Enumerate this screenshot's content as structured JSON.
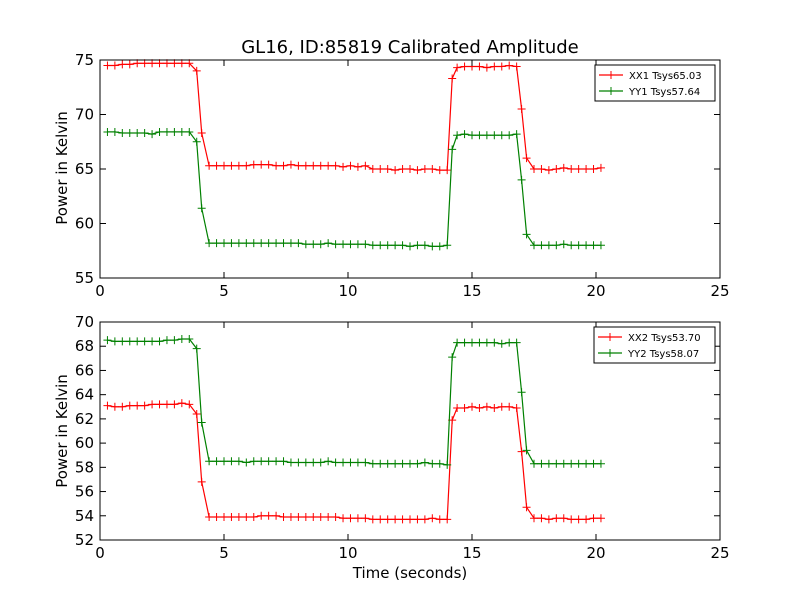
{
  "title": "GL16, ID:85819 Calibrated Amplitude",
  "xlabel": "Time (seconds)",
  "chart_data": [
    {
      "type": "line",
      "ylabel": "Power in Kelvin",
      "xlim": [
        0,
        25
      ],
      "ylim": [
        55,
        75
      ],
      "xticks": [
        "0",
        "5",
        "10",
        "15",
        "20",
        "25"
      ],
      "yticks": [
        "55",
        "60",
        "65",
        "70",
        "75"
      ],
      "legend": "top-right",
      "series": [
        {
          "name": "XX1 Tsys65.03",
          "color": "#ff0000",
          "x": [
            0.3,
            0.6,
            0.9,
            1.2,
            1.5,
            1.8,
            2.1,
            2.4,
            2.7,
            3.0,
            3.3,
            3.6,
            3.9,
            4.1,
            4.4,
            4.7,
            5.0,
            5.3,
            5.6,
            5.9,
            6.2,
            6.5,
            6.8,
            7.1,
            7.4,
            7.7,
            8.0,
            8.3,
            8.6,
            8.9,
            9.2,
            9.5,
            9.8,
            10.1,
            10.4,
            10.7,
            11.0,
            11.3,
            11.6,
            11.9,
            12.2,
            12.5,
            12.8,
            13.1,
            13.4,
            13.7,
            14.0,
            14.2,
            14.4,
            14.7,
            15.0,
            15.3,
            15.6,
            15.9,
            16.2,
            16.5,
            16.8,
            17.0,
            17.2,
            17.5,
            17.8,
            18.1,
            18.4,
            18.7,
            19.0,
            19.3,
            19.6,
            19.9,
            20.2
          ],
          "y": [
            74.5,
            74.5,
            74.6,
            74.6,
            74.7,
            74.7,
            74.7,
            74.7,
            74.7,
            74.7,
            74.7,
            74.7,
            74.0,
            68.3,
            65.3,
            65.3,
            65.3,
            65.3,
            65.3,
            65.3,
            65.4,
            65.4,
            65.4,
            65.3,
            65.3,
            65.4,
            65.3,
            65.3,
            65.3,
            65.3,
            65.3,
            65.3,
            65.2,
            65.3,
            65.2,
            65.3,
            65.0,
            65.0,
            65.0,
            64.9,
            65.0,
            65.0,
            64.9,
            65.0,
            65.0,
            64.9,
            64.9,
            73.3,
            74.3,
            74.4,
            74.4,
            74.4,
            74.3,
            74.4,
            74.4,
            74.5,
            74.4,
            70.5,
            66.0,
            65.0,
            65.0,
            64.9,
            65.0,
            65.1,
            65.0,
            65.0,
            65.0,
            65.0,
            65.1
          ]
        },
        {
          "name": "YY1 Tsys57.64",
          "color": "#008000",
          "x": [
            0.3,
            0.6,
            0.9,
            1.2,
            1.5,
            1.8,
            2.1,
            2.4,
            2.7,
            3.0,
            3.3,
            3.6,
            3.9,
            4.1,
            4.4,
            4.7,
            5.0,
            5.3,
            5.6,
            5.9,
            6.2,
            6.5,
            6.8,
            7.1,
            7.4,
            7.7,
            8.0,
            8.3,
            8.6,
            8.9,
            9.2,
            9.5,
            9.8,
            10.1,
            10.4,
            10.7,
            11.0,
            11.3,
            11.6,
            11.9,
            12.2,
            12.5,
            12.8,
            13.1,
            13.4,
            13.7,
            14.0,
            14.2,
            14.4,
            14.7,
            15.0,
            15.3,
            15.6,
            15.9,
            16.2,
            16.5,
            16.8,
            17.0,
            17.2,
            17.5,
            17.8,
            18.1,
            18.4,
            18.7,
            19.0,
            19.3,
            19.6,
            19.9,
            20.2
          ],
          "y": [
            68.4,
            68.4,
            68.3,
            68.3,
            68.3,
            68.3,
            68.2,
            68.4,
            68.4,
            68.4,
            68.4,
            68.4,
            67.5,
            61.4,
            58.2,
            58.2,
            58.2,
            58.2,
            58.2,
            58.2,
            58.2,
            58.2,
            58.2,
            58.2,
            58.2,
            58.2,
            58.2,
            58.1,
            58.1,
            58.1,
            58.2,
            58.1,
            58.1,
            58.1,
            58.1,
            58.1,
            58.0,
            58.0,
            58.0,
            58.0,
            58.0,
            57.9,
            58.0,
            58.0,
            57.9,
            57.9,
            58.0,
            66.8,
            68.1,
            68.2,
            68.1,
            68.1,
            68.1,
            68.1,
            68.1,
            68.1,
            68.2,
            64.0,
            59.0,
            58.0,
            58.0,
            58.0,
            58.0,
            58.1,
            58.0,
            58.0,
            58.0,
            58.0,
            58.0
          ]
        }
      ]
    },
    {
      "type": "line",
      "ylabel": "Power in Kelvin",
      "xlabel": "Time (seconds)",
      "xlim": [
        0,
        25
      ],
      "ylim": [
        52,
        70
      ],
      "xticks": [
        "0",
        "5",
        "10",
        "15",
        "20",
        "25"
      ],
      "yticks": [
        "52",
        "54",
        "56",
        "58",
        "60",
        "62",
        "64",
        "66",
        "68",
        "70"
      ],
      "legend": "top-right",
      "series": [
        {
          "name": "XX2 Tsys53.70",
          "color": "#ff0000",
          "x": [
            0.3,
            0.6,
            0.9,
            1.2,
            1.5,
            1.8,
            2.1,
            2.4,
            2.7,
            3.0,
            3.3,
            3.6,
            3.9,
            4.1,
            4.4,
            4.7,
            5.0,
            5.3,
            5.6,
            5.9,
            6.2,
            6.5,
            6.8,
            7.1,
            7.4,
            7.7,
            8.0,
            8.3,
            8.6,
            8.9,
            9.2,
            9.5,
            9.8,
            10.1,
            10.4,
            10.7,
            11.0,
            11.3,
            11.6,
            11.9,
            12.2,
            12.5,
            12.8,
            13.1,
            13.4,
            13.7,
            14.0,
            14.2,
            14.4,
            14.7,
            15.0,
            15.3,
            15.6,
            15.9,
            16.2,
            16.5,
            16.8,
            17.0,
            17.2,
            17.5,
            17.8,
            18.1,
            18.4,
            18.7,
            19.0,
            19.3,
            19.6,
            19.9,
            20.2
          ],
          "y": [
            63.1,
            63.0,
            63.0,
            63.1,
            63.1,
            63.1,
            63.2,
            63.2,
            63.2,
            63.2,
            63.3,
            63.2,
            62.4,
            56.8,
            53.9,
            53.9,
            53.9,
            53.9,
            53.9,
            53.9,
            53.9,
            54.0,
            54.0,
            54.0,
            53.9,
            53.9,
            53.9,
            53.9,
            53.9,
            53.9,
            53.9,
            53.9,
            53.8,
            53.8,
            53.8,
            53.8,
            53.7,
            53.7,
            53.7,
            53.7,
            53.7,
            53.7,
            53.7,
            53.7,
            53.8,
            53.7,
            53.7,
            61.9,
            62.9,
            62.9,
            63.0,
            62.9,
            63.0,
            62.9,
            63.0,
            63.0,
            62.9,
            59.3,
            54.7,
            53.8,
            53.8,
            53.7,
            53.8,
            53.8,
            53.7,
            53.7,
            53.7,
            53.8,
            53.8
          ]
        },
        {
          "name": "YY2 Tsys58.07",
          "color": "#008000",
          "x": [
            0.3,
            0.6,
            0.9,
            1.2,
            1.5,
            1.8,
            2.1,
            2.4,
            2.7,
            3.0,
            3.3,
            3.6,
            3.9,
            4.1,
            4.4,
            4.7,
            5.0,
            5.3,
            5.6,
            5.9,
            6.2,
            6.5,
            6.8,
            7.1,
            7.4,
            7.7,
            8.0,
            8.3,
            8.6,
            8.9,
            9.2,
            9.5,
            9.8,
            10.1,
            10.4,
            10.7,
            11.0,
            11.3,
            11.6,
            11.9,
            12.2,
            12.5,
            12.8,
            13.1,
            13.4,
            13.7,
            14.0,
            14.2,
            14.4,
            14.7,
            15.0,
            15.3,
            15.6,
            15.9,
            16.2,
            16.5,
            16.8,
            17.0,
            17.2,
            17.5,
            17.8,
            18.1,
            18.4,
            18.7,
            19.0,
            19.3,
            19.6,
            19.9,
            20.2
          ],
          "y": [
            68.5,
            68.4,
            68.4,
            68.4,
            68.4,
            68.4,
            68.4,
            68.4,
            68.5,
            68.5,
            68.6,
            68.6,
            67.8,
            61.7,
            58.5,
            58.5,
            58.5,
            58.5,
            58.5,
            58.4,
            58.5,
            58.5,
            58.5,
            58.5,
            58.5,
            58.4,
            58.4,
            58.4,
            58.4,
            58.4,
            58.5,
            58.4,
            58.4,
            58.4,
            58.4,
            58.4,
            58.3,
            58.3,
            58.3,
            58.3,
            58.3,
            58.3,
            58.3,
            58.4,
            58.3,
            58.3,
            58.2,
            67.1,
            68.3,
            68.3,
            68.3,
            68.3,
            68.3,
            68.3,
            68.2,
            68.3,
            68.3,
            64.2,
            59.4,
            58.3,
            58.3,
            58.3,
            58.3,
            58.3,
            58.3,
            58.3,
            58.3,
            58.3,
            58.3
          ]
        }
      ]
    }
  ]
}
